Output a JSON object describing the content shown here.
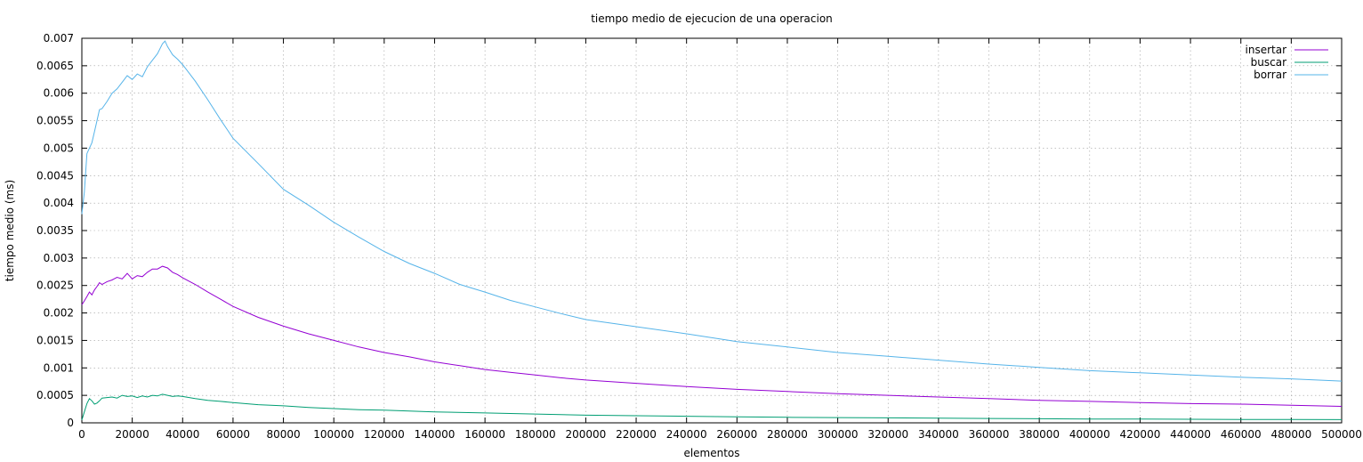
{
  "chart_data": {
    "type": "line",
    "title": "tiempo medio de ejecucion de una operacion",
    "xlabel": "elementos",
    "ylabel": "tiempo medio (ms)",
    "xlim": [
      0,
      500000
    ],
    "ylim": [
      0,
      0.007
    ],
    "grid": true,
    "legend_position": "top-right",
    "x_ticks": [
      0,
      20000,
      40000,
      60000,
      80000,
      100000,
      120000,
      140000,
      160000,
      180000,
      200000,
      220000,
      240000,
      260000,
      280000,
      300000,
      320000,
      340000,
      360000,
      380000,
      400000,
      420000,
      440000,
      460000,
      480000,
      500000
    ],
    "x_tick_labels": [
      "0",
      "20000",
      "40000",
      "60000",
      "80000",
      "100000",
      "120000",
      "140000",
      "160000",
      "180000",
      "200000",
      "220000",
      "240000",
      "260000",
      "280000",
      "300000",
      "320000",
      "340000",
      "360000",
      "380000",
      "400000",
      "420000",
      "440000",
      "460000",
      "480000",
      "500000"
    ],
    "y_ticks": [
      0,
      0.0005,
      0.001,
      0.0015,
      0.002,
      0.0025,
      0.003,
      0.0035,
      0.004,
      0.0045,
      0.005,
      0.0055,
      0.006,
      0.0065,
      0.007
    ],
    "y_tick_labels": [
      "0",
      "0.0005",
      "0.001",
      "0.0015",
      "0.002",
      "0.0025",
      "0.003",
      "0.0035",
      "0.004",
      "0.0045",
      "0.005",
      "0.0055",
      "0.006",
      "0.0065",
      "0.007"
    ],
    "series": [
      {
        "name": "insertar",
        "color": "#9400d3",
        "points": [
          [
            0,
            0.00215
          ],
          [
            1000,
            0.00222
          ],
          [
            2000,
            0.0023
          ],
          [
            3000,
            0.00238
          ],
          [
            4000,
            0.00233
          ],
          [
            5000,
            0.00242
          ],
          [
            6000,
            0.00248
          ],
          [
            7000,
            0.00255
          ],
          [
            8000,
            0.00252
          ],
          [
            10000,
            0.00257
          ],
          [
            12000,
            0.0026
          ],
          [
            14000,
            0.00265
          ],
          [
            16000,
            0.00262
          ],
          [
            18000,
            0.00272
          ],
          [
            20000,
            0.00262
          ],
          [
            22000,
            0.00268
          ],
          [
            24000,
            0.00266
          ],
          [
            26000,
            0.00274
          ],
          [
            28000,
            0.0028
          ],
          [
            30000,
            0.0028
          ],
          [
            32000,
            0.00285
          ],
          [
            34000,
            0.00282
          ],
          [
            36000,
            0.00274
          ],
          [
            38000,
            0.0027
          ],
          [
            40000,
            0.00264
          ],
          [
            45000,
            0.00252
          ],
          [
            50000,
            0.00238
          ],
          [
            55000,
            0.00225
          ],
          [
            60000,
            0.00212
          ],
          [
            70000,
            0.00192
          ],
          [
            80000,
            0.00176
          ],
          [
            90000,
            0.00162
          ],
          [
            100000,
            0.0015
          ],
          [
            110000,
            0.00138
          ],
          [
            120000,
            0.00128
          ],
          [
            130000,
            0.0012
          ],
          [
            140000,
            0.00111
          ],
          [
            150000,
            0.00104
          ],
          [
            160000,
            0.00097
          ],
          [
            170000,
            0.00092
          ],
          [
            180000,
            0.00087
          ],
          [
            190000,
            0.00082
          ],
          [
            200000,
            0.00078
          ],
          [
            220000,
            0.00072
          ],
          [
            240000,
            0.00066
          ],
          [
            260000,
            0.00061
          ],
          [
            280000,
            0.00057
          ],
          [
            300000,
            0.00053
          ],
          [
            320000,
            0.0005
          ],
          [
            340000,
            0.00047
          ],
          [
            360000,
            0.00044
          ],
          [
            380000,
            0.00041
          ],
          [
            400000,
            0.00039
          ],
          [
            420000,
            0.00037
          ],
          [
            440000,
            0.00035
          ],
          [
            460000,
            0.00034
          ],
          [
            480000,
            0.00032
          ],
          [
            500000,
            0.0003
          ]
        ]
      },
      {
        "name": "buscar",
        "color": "#009e73",
        "points": [
          [
            0,
            5e-05
          ],
          [
            1000,
            0.0002
          ],
          [
            2000,
            0.00035
          ],
          [
            3000,
            0.00044
          ],
          [
            4000,
            0.0004
          ],
          [
            5000,
            0.00034
          ],
          [
            6000,
            0.00036
          ],
          [
            7000,
            0.0004
          ],
          [
            8000,
            0.00045
          ],
          [
            10000,
            0.00046
          ],
          [
            12000,
            0.00047
          ],
          [
            14000,
            0.00045
          ],
          [
            16000,
            0.0005
          ],
          [
            18000,
            0.00048
          ],
          [
            20000,
            0.00049
          ],
          [
            22000,
            0.00046
          ],
          [
            24000,
            0.00049
          ],
          [
            26000,
            0.00047
          ],
          [
            28000,
            0.0005
          ],
          [
            30000,
            0.00049
          ],
          [
            32000,
            0.00052
          ],
          [
            34000,
            0.0005
          ],
          [
            36000,
            0.00048
          ],
          [
            38000,
            0.00049
          ],
          [
            40000,
            0.00048
          ],
          [
            45000,
            0.00044
          ],
          [
            50000,
            0.00041
          ],
          [
            55000,
            0.00039
          ],
          [
            60000,
            0.00037
          ],
          [
            70000,
            0.00033
          ],
          [
            80000,
            0.00031
          ],
          [
            90000,
            0.00028
          ],
          [
            100000,
            0.00026
          ],
          [
            110000,
            0.00024
          ],
          [
            120000,
            0.00023
          ],
          [
            140000,
            0.0002
          ],
          [
            160000,
            0.00018
          ],
          [
            180000,
            0.00016
          ],
          [
            200000,
            0.00014
          ],
          [
            220000,
            0.00013
          ],
          [
            240000,
            0.00012
          ],
          [
            260000,
            0.00011
          ],
          [
            280000,
            0.0001
          ],
          [
            300000,
            9.5e-05
          ],
          [
            320000,
            9e-05
          ],
          [
            340000,
            8.5e-05
          ],
          [
            360000,
            8e-05
          ],
          [
            380000,
            7.5e-05
          ],
          [
            400000,
            7e-05
          ],
          [
            420000,
            6.8e-05
          ],
          [
            440000,
            6.5e-05
          ],
          [
            460000,
            6.2e-05
          ],
          [
            480000,
            6e-05
          ],
          [
            500000,
            5.8e-05
          ]
        ]
      },
      {
        "name": "borrar",
        "color": "#56b4e9",
        "points": [
          [
            0,
            0.0038
          ],
          [
            1000,
            0.0042
          ],
          [
            2000,
            0.0049
          ],
          [
            3000,
            0.005
          ],
          [
            4000,
            0.0051
          ],
          [
            5000,
            0.0053
          ],
          [
            6000,
            0.0055
          ],
          [
            7000,
            0.0057
          ],
          [
            8000,
            0.00572
          ],
          [
            10000,
            0.00585
          ],
          [
            12000,
            0.006
          ],
          [
            14000,
            0.00608
          ],
          [
            16000,
            0.0062
          ],
          [
            18000,
            0.00632
          ],
          [
            20000,
            0.00625
          ],
          [
            22000,
            0.00635
          ],
          [
            24000,
            0.0063
          ],
          [
            26000,
            0.00648
          ],
          [
            28000,
            0.0066
          ],
          [
            30000,
            0.00672
          ],
          [
            32000,
            0.0069
          ],
          [
            33000,
            0.00695
          ],
          [
            34000,
            0.00685
          ],
          [
            36000,
            0.0067
          ],
          [
            38000,
            0.00662
          ],
          [
            40000,
            0.00652
          ],
          [
            45000,
            0.00622
          ],
          [
            50000,
            0.00588
          ],
          [
            55000,
            0.00552
          ],
          [
            60000,
            0.00518
          ],
          [
            70000,
            0.00472
          ],
          [
            80000,
            0.00425
          ],
          [
            90000,
            0.00396
          ],
          [
            100000,
            0.00365
          ],
          [
            110000,
            0.00338
          ],
          [
            120000,
            0.00312
          ],
          [
            130000,
            0.0029
          ],
          [
            140000,
            0.00272
          ],
          [
            150000,
            0.00252
          ],
          [
            160000,
            0.00238
          ],
          [
            170000,
            0.00223
          ],
          [
            180000,
            0.00211
          ],
          [
            190000,
            0.00199
          ],
          [
            200000,
            0.00188
          ],
          [
            220000,
            0.00175
          ],
          [
            240000,
            0.00162
          ],
          [
            260000,
            0.00148
          ],
          [
            280000,
            0.00138
          ],
          [
            300000,
            0.00128
          ],
          [
            320000,
            0.00121
          ],
          [
            340000,
            0.00114
          ],
          [
            360000,
            0.00107
          ],
          [
            380000,
            0.00101
          ],
          [
            400000,
            0.00095
          ],
          [
            420000,
            0.00091
          ],
          [
            440000,
            0.00087
          ],
          [
            460000,
            0.00083
          ],
          [
            480000,
            0.0008
          ],
          [
            500000,
            0.00076
          ]
        ]
      }
    ]
  }
}
